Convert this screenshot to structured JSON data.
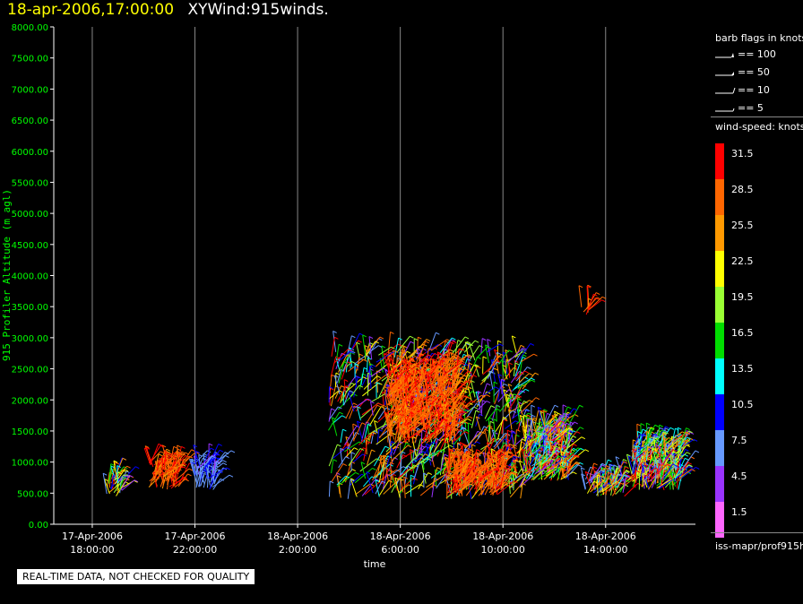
{
  "header": {
    "timestamp": "18-apr-2006,17:00:00",
    "title": "XYWind:915winds."
  },
  "legend": {
    "barb_title": "barb flags in knots",
    "barbs": [
      {
        "label": "== 100",
        "icon": "barb-100-icon"
      },
      {
        "label": "== 50",
        "icon": "barb-50-icon"
      },
      {
        "label": "== 10",
        "icon": "barb-10-icon"
      },
      {
        "label": "== 5",
        "icon": "barb-5-icon"
      }
    ],
    "speed_title": "wind-speed: knots",
    "speed_scale": [
      {
        "label": "31.5",
        "color": "#ff0000"
      },
      {
        "label": "28.5",
        "color": "#ff6600"
      },
      {
        "label": "25.5",
        "color": "#ff9900"
      },
      {
        "label": "22.5",
        "color": "#ffff00"
      },
      {
        "label": "19.5",
        "color": "#99ff33"
      },
      {
        "label": "16.5",
        "color": "#00dd00"
      },
      {
        "label": "13.5",
        "color": "#00ffff"
      },
      {
        "label": "10.5",
        "color": "#0000ff"
      },
      {
        "label": "7.5",
        "color": "#6699ff"
      },
      {
        "label": "4.5",
        "color": "#9933ff"
      },
      {
        "label": "1.5",
        "color": "#ff66ff"
      }
    ],
    "source_id": "iss-mapr/prof915h"
  },
  "quality_note": "REAL-TIME DATA, NOT CHECKED FOR QUALITY",
  "chart_data": {
    "type": "scatter",
    "title": "XYWind:915winds.",
    "xlabel": "time",
    "ylabel": "915 Profiler Altitude (m agl)",
    "ylim": [
      0,
      8000
    ],
    "xlim_hours": [
      -7.5,
      17.5
    ],
    "grid": "vertical lines at each x tick",
    "yticks": [
      "0.00",
      "500.00",
      "1000.00",
      "1500.00",
      "2000.00",
      "2500.00",
      "3000.00",
      "3500.00",
      "4000.00",
      "4500.00",
      "5000.00",
      "5500.00",
      "6000.00",
      "6500.00",
      "7000.00",
      "7500.00",
      "8000.00"
    ],
    "xticks": [
      {
        "hours": -6,
        "date": "17-Apr-2006",
        "time": "18:00:00"
      },
      {
        "hours": -2,
        "date": "17-Apr-2006",
        "time": "22:00:00"
      },
      {
        "hours": 2,
        "date": "18-Apr-2006",
        "time": "2:00:00"
      },
      {
        "hours": 6,
        "date": "18-Apr-2006",
        "time": "6:00:00"
      },
      {
        "hours": 10,
        "date": "18-Apr-2006",
        "time": "10:00:00"
      },
      {
        "hours": 14,
        "date": "18-Apr-2006",
        "time": "14:00:00"
      }
    ],
    "series": [
      {
        "t_start": -5.5,
        "t_end": -4.8,
        "alt_min": 450,
        "alt_max": 750,
        "dominant_speed": "mixed"
      },
      {
        "t_start": -3.8,
        "t_end": -2.6,
        "alt_min": 550,
        "alt_max": 1000,
        "dominant_speed": 31.5
      },
      {
        "t_start": -2.0,
        "t_end": -1.2,
        "alt_min": 550,
        "alt_max": 1000,
        "dominant_speed": 10.5
      },
      {
        "t_start": 3.2,
        "t_end": 10.8,
        "alt_min": 400,
        "alt_max": 2800,
        "dominant_speed": "mixed"
      },
      {
        "t_start": 5.5,
        "t_end": 8.2,
        "alt_min": 1300,
        "alt_max": 2500,
        "dominant_speed": 31.5
      },
      {
        "t_start": 7.8,
        "t_end": 10.0,
        "alt_min": 450,
        "alt_max": 1000,
        "dominant_speed": 31.5
      },
      {
        "t_start": 10.8,
        "t_end": 12.6,
        "alt_min": 700,
        "alt_max": 1600,
        "dominant_speed": "mixed"
      },
      {
        "t_start": 13.0,
        "t_end": 13.4,
        "alt_min": 3350,
        "alt_max": 3500,
        "dominant_speed": 31.5
      },
      {
        "t_start": 13.2,
        "t_end": 14.8,
        "alt_min": 450,
        "alt_max": 750,
        "dominant_speed": "mixed"
      },
      {
        "t_start": 15.0,
        "t_end": 17.0,
        "alt_min": 550,
        "alt_max": 1300,
        "dominant_speed": "mixed"
      }
    ]
  }
}
